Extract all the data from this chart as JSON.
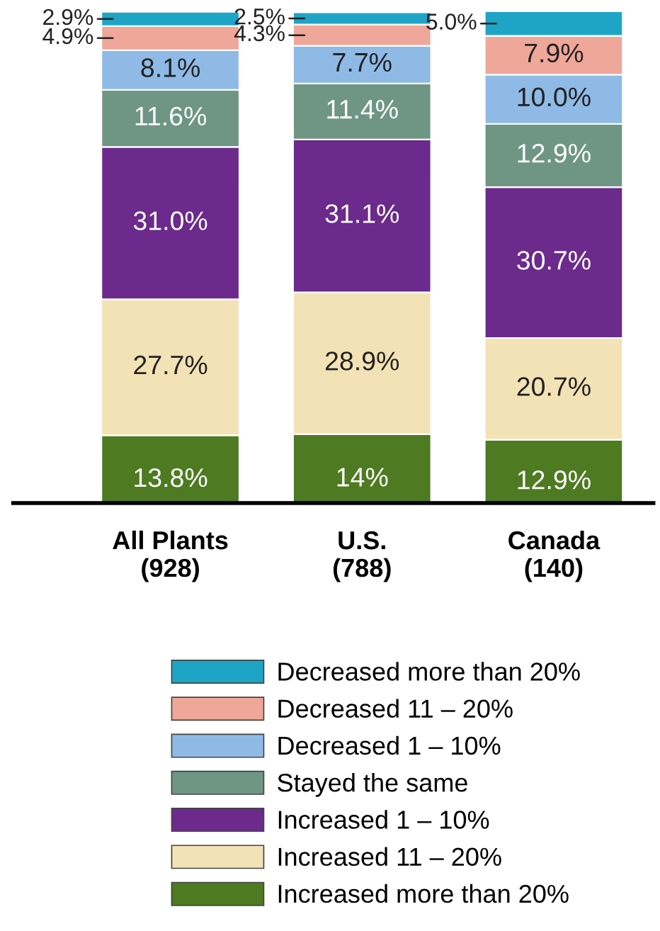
{
  "chart_data": {
    "type": "bar",
    "stacked": true,
    "categories": [
      "All Plants\n(928)",
      "U.S.\n(788)",
      "Canada\n(140)"
    ],
    "series": [
      {
        "name": "Increased more than 20%",
        "color": "#4e7a22",
        "values": [
          13.8,
          14,
          12.9
        ],
        "value_labels": [
          "13.8%",
          "14%",
          "12.9%"
        ]
      },
      {
        "name": "Increased 11 – 20%",
        "color": "#f3e2b6",
        "values": [
          27.7,
          28.9,
          20.7
        ],
        "value_labels": [
          "27.7%",
          "28.9%",
          "20.7%"
        ]
      },
      {
        "name": "Increased 1 – 10%",
        "color": "#6c2a8c",
        "values": [
          31.0,
          31.1,
          30.7
        ],
        "value_labels": [
          "31.0%",
          "31.1%",
          "30.7%"
        ]
      },
      {
        "name": "Stayed the same",
        "color": "#6f9684",
        "values": [
          11.6,
          11.4,
          12.9
        ],
        "value_labels": [
          "11.6%",
          "11.4%",
          "12.9%"
        ]
      },
      {
        "name": "Decreased 1 – 10%",
        "color": "#8fbae6",
        "values": [
          8.1,
          7.7,
          10.0
        ],
        "value_labels": [
          "8.1%",
          "7.7%",
          "10.0%"
        ]
      },
      {
        "name": "Decreased 11 – 20%",
        "color": "#efa79a",
        "values": [
          4.9,
          4.3,
          7.9
        ],
        "value_labels": [
          "4.9%",
          "4.3%",
          "7.9%"
        ]
      },
      {
        "name": "Decreased more than 20%",
        "color": "#1ea5c6",
        "values": [
          2.9,
          2.5,
          5.0
        ],
        "value_labels": [
          "2.9%",
          "2.5%",
          "5.0%"
        ]
      }
    ],
    "legend": "bottom"
  }
}
